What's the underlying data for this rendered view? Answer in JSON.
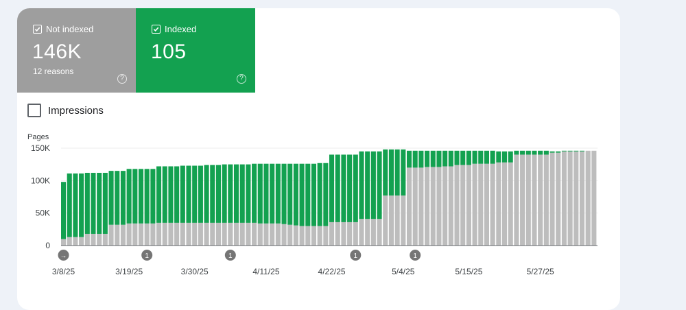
{
  "tiles": {
    "not_indexed": {
      "label": "Not indexed",
      "value": "146K",
      "sub": "12 reasons",
      "color": "#9e9e9e",
      "help": "?"
    },
    "indexed": {
      "label": "Indexed",
      "value": "105",
      "color": "#13a150",
      "help": "?"
    }
  },
  "impressions_label": "Impressions",
  "chart_data": {
    "type": "bar",
    "stacked": true,
    "ylabel": "Pages",
    "ylim": [
      0,
      150000
    ],
    "yticks": [
      "0",
      "50K",
      "100K",
      "150K"
    ],
    "ytick_values": [
      0,
      50000,
      100000,
      150000
    ],
    "xticks": [
      {
        "label": "3/8/25",
        "index": 0
      },
      {
        "label": "3/19/25",
        "index": 11
      },
      {
        "label": "3/30/25",
        "index": 22
      },
      {
        "label": "4/11/25",
        "index": 34
      },
      {
        "label": "4/22/25",
        "index": 45
      },
      {
        "label": "5/4/25",
        "index": 57
      },
      {
        "label": "5/15/25",
        "index": 68
      },
      {
        "label": "5/27/25",
        "index": 80
      }
    ],
    "annotations": [
      {
        "index": 0,
        "label": "→"
      },
      {
        "index": 14,
        "label": "1"
      },
      {
        "index": 28,
        "label": "1"
      },
      {
        "index": 49,
        "label": "1"
      },
      {
        "index": 59,
        "label": "1"
      }
    ],
    "series": [
      {
        "name": "Not indexed",
        "color": "#bdbdbd",
        "values": [
          10000,
          13000,
          13000,
          13000,
          18000,
          18000,
          18000,
          18000,
          32000,
          32000,
          32000,
          34000,
          34000,
          34000,
          34000,
          34000,
          35000,
          35000,
          35000,
          35000,
          35000,
          35000,
          35000,
          35000,
          35000,
          35000,
          35000,
          35000,
          35000,
          35000,
          35000,
          35000,
          35000,
          34000,
          34000,
          34000,
          34000,
          33000,
          32000,
          31000,
          30000,
          30000,
          30000,
          30000,
          30000,
          36000,
          36000,
          36000,
          36000,
          36000,
          41000,
          41000,
          41000,
          41000,
          77000,
          77000,
          77000,
          77000,
          120000,
          120000,
          120000,
          121000,
          121000,
          121000,
          122000,
          122000,
          124000,
          124000,
          124000,
          126000,
          126000,
          126000,
          126000,
          128000,
          128000,
          128000,
          140000,
          140000,
          140000,
          140000,
          140000,
          140000,
          143000,
          143000,
          145000,
          145000,
          145000,
          145000,
          146000,
          146000
        ]
      },
      {
        "name": "Indexed",
        "color": "#13a150",
        "values": [
          88000,
          98000,
          98000,
          98000,
          94000,
          94000,
          94000,
          94000,
          83000,
          83000,
          83000,
          84000,
          84000,
          84000,
          84000,
          84000,
          87000,
          87000,
          87000,
          87000,
          88000,
          88000,
          88000,
          88000,
          89000,
          89000,
          89000,
          90000,
          90000,
          90000,
          90000,
          90000,
          91000,
          92000,
          92000,
          92000,
          92000,
          93000,
          94000,
          95000,
          96000,
          96000,
          96000,
          97000,
          97000,
          104000,
          104000,
          104000,
          104000,
          104000,
          104000,
          104000,
          104000,
          104000,
          71000,
          71000,
          71000,
          71000,
          26000,
          26000,
          26000,
          25000,
          25000,
          25000,
          24000,
          24000,
          22000,
          22000,
          22000,
          20000,
          20000,
          20000,
          20000,
          17000,
          17000,
          17000,
          6000,
          6000,
          6000,
          6000,
          6000,
          6000,
          2000,
          2000,
          1000,
          1000,
          1000,
          1000,
          0,
          0
        ]
      }
    ]
  }
}
